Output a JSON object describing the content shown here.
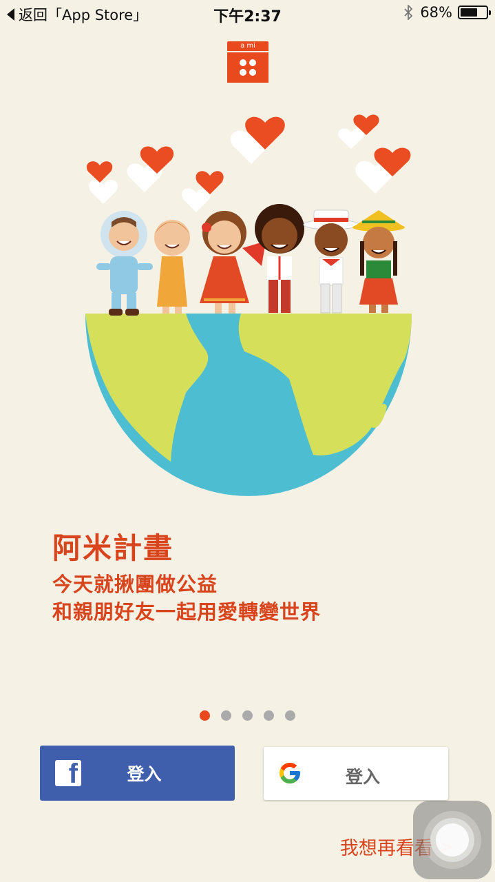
{
  "status_bar": {
    "back_label": "返回「App Store」",
    "time": "下午2:37",
    "battery": "68%",
    "battery_level": 0.68
  },
  "logo": {
    "top_text": "a mi",
    "icon": "ami-logo-icon"
  },
  "hero": {
    "icon": "children-on-globe-illustration"
  },
  "content": {
    "title": "阿米計畫",
    "subtitle_line1": "今天就揪團做公益",
    "subtitle_line2": "和親朋好友一起用愛轉變世界"
  },
  "pagination": {
    "total": 5,
    "active_index": 0
  },
  "buttons": {
    "facebook_label": "登入",
    "google_label": "登入",
    "skip_label": "我想再看看",
    "skip_chevron": ">"
  },
  "colors": {
    "accent": "#e84a1d",
    "text_accent": "#d8441c",
    "background": "#f5f1e5",
    "facebook": "#3f5fad",
    "ocean": "#4dbdd2",
    "land": "#d5df5a"
  }
}
